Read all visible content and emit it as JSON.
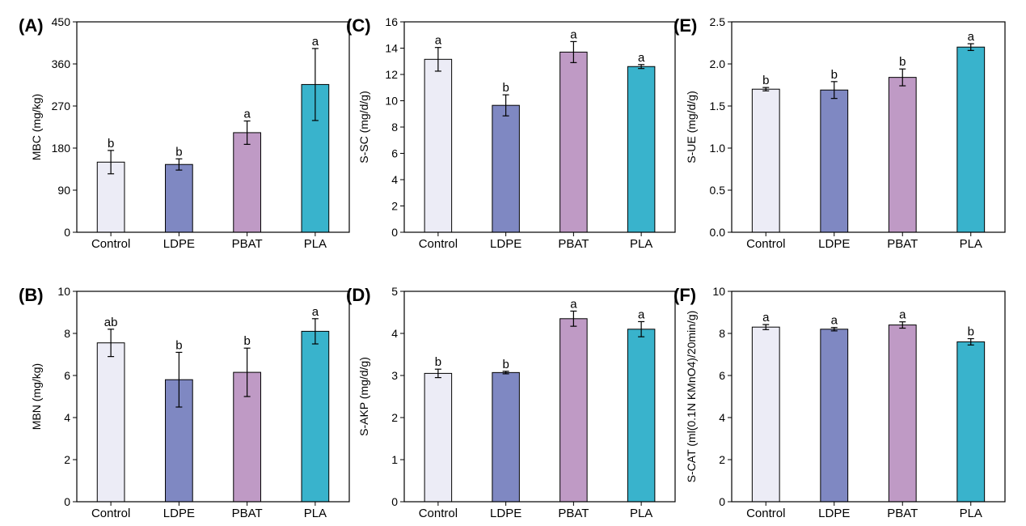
{
  "style": {
    "bar_colors": [
      "#ececf6",
      "#7f88c2",
      "#bf9ac5",
      "#39b3cc"
    ],
    "axis_color": "#000000"
  },
  "chart_data": [
    {
      "panel": "(A)",
      "type": "bar",
      "categories": [
        "Control",
        "LDPE",
        "PBAT",
        "PLA"
      ],
      "values": [
        150,
        145,
        213,
        316
      ],
      "errors": [
        25,
        12,
        25,
        77
      ],
      "significance": [
        "b",
        "b",
        "a",
        "a"
      ],
      "ylabel": "MBC (mg/kg)",
      "ylim": [
        0,
        450
      ],
      "yticks": [
        0,
        90,
        180,
        270,
        360,
        450
      ]
    },
    {
      "panel": "(B)",
      "type": "bar",
      "categories": [
        "Control",
        "LDPE",
        "PBAT",
        "PLA"
      ],
      "values": [
        7.55,
        5.8,
        6.15,
        8.1
      ],
      "errors": [
        0.65,
        1.3,
        1.15,
        0.6
      ],
      "significance": [
        "ab",
        "b",
        "b",
        "a"
      ],
      "ylabel": "MBN (mg/kg)",
      "ylim": [
        0,
        10
      ],
      "yticks": [
        0,
        2,
        4,
        6,
        8,
        10
      ]
    },
    {
      "panel": "(C)",
      "type": "bar",
      "categories": [
        "Control",
        "LDPE",
        "PBAT",
        "PLA"
      ],
      "values": [
        13.15,
        9.65,
        13.7,
        12.6
      ],
      "errors": [
        0.9,
        0.8,
        0.8,
        0.15
      ],
      "significance": [
        "a",
        "b",
        "a",
        "a"
      ],
      "ylabel": "S-SC (mg/d/g)",
      "ylim": [
        0,
        16
      ],
      "yticks": [
        0,
        2,
        4,
        6,
        8,
        10,
        12,
        14,
        16
      ]
    },
    {
      "panel": "(D)",
      "type": "bar",
      "categories": [
        "Control",
        "LDPE",
        "PBAT",
        "PLA"
      ],
      "values": [
        3.05,
        3.07,
        4.35,
        4.1
      ],
      "errors": [
        0.1,
        0.03,
        0.18,
        0.18
      ],
      "significance": [
        "b",
        "b",
        "a",
        "a"
      ],
      "ylabel": "S-AKP (mg/d/g)",
      "ylim": [
        0,
        5
      ],
      "yticks": [
        0,
        1,
        2,
        3,
        4,
        5
      ]
    },
    {
      "panel": "(E)",
      "type": "bar",
      "categories": [
        "Control",
        "LDPE",
        "PBAT",
        "PLA"
      ],
      "values": [
        1.7,
        1.69,
        1.84,
        2.2
      ],
      "errors": [
        0.02,
        0.1,
        0.1,
        0.04
      ],
      "significance": [
        "b",
        "b",
        "b",
        "a"
      ],
      "ylabel": "S-UE (mg/d/g)",
      "ylim": [
        0,
        2.5
      ],
      "yticks": [
        "0.0",
        "0.5",
        "1.0",
        "1.5",
        "2.0",
        "2.5"
      ]
    },
    {
      "panel": "(F)",
      "type": "bar",
      "categories": [
        "Control",
        "LDPE",
        "PBAT",
        "PLA"
      ],
      "values": [
        8.3,
        8.2,
        8.4,
        7.6
      ],
      "errors": [
        0.12,
        0.08,
        0.15,
        0.15
      ],
      "significance": [
        "a",
        "a",
        "a",
        "b"
      ],
      "ylabel": "S-CAT (ml(0.1N KMnO4)/20min/g)",
      "ylim": [
        0,
        10
      ],
      "yticks": [
        0,
        2,
        4,
        6,
        8,
        10
      ]
    }
  ]
}
